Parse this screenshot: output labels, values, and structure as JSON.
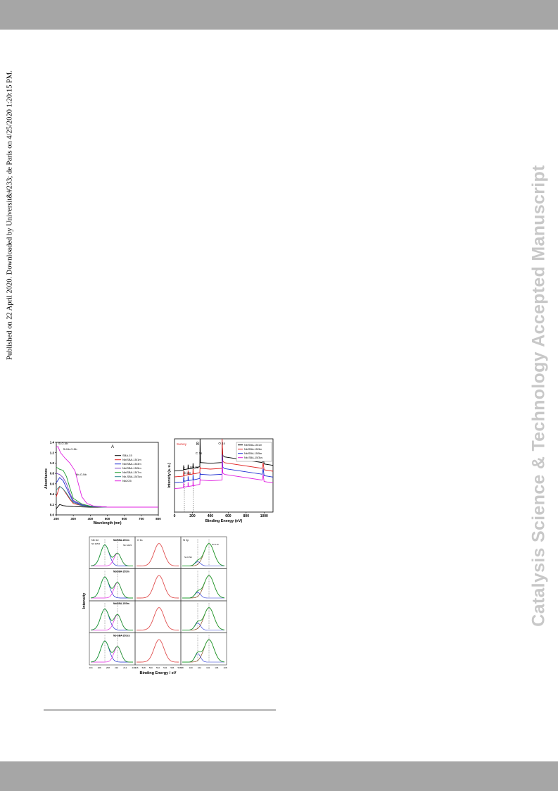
{
  "header": {
    "band_color": "#a6a6a6"
  },
  "side_note": "Published on 22 April 2020. Downloaded by Universit&#233; de Paris on 4/25/2020 1:20:15 PM.",
  "watermark": "Catalysis Science & Technology Accepted Manuscript",
  "figure_a": {
    "panel_label": "A",
    "xlabel": "Wavelength (nm)",
    "ylabel": "Absorbance",
    "x_ticks": [
      "200",
      "300",
      "400",
      "500",
      "600",
      "700",
      "800"
    ],
    "y_ticks": [
      "0.0",
      "0.2",
      "0.4",
      "0.6",
      "0.8",
      "1.0",
      "1.2",
      "1.4"
    ],
    "annotations": [
      "Si-O-Nb",
      "Si-Nb-O-Nb",
      "Nb-O-Nb"
    ],
    "legend": [
      "SBA-15",
      "Nb/SBA-15/1m",
      "Nb/SBA-15/3m",
      "Nb/SBA-15/5m",
      "Nb/SBA-15/7m",
      "Nb-SBA-15/3cs",
      "Nb2O5"
    ]
  },
  "chart_data": [
    {
      "type": "line",
      "panel": "A",
      "xlabel": "Wavelength (nm)",
      "ylabel": "Absorbance",
      "xlim": [
        200,
        800
      ],
      "ylim": [
        0.0,
        1.4
      ],
      "series": [
        {
          "name": "SBA-15",
          "color": "#000000",
          "x": [
            200,
            220,
            240,
            260,
            300,
            400,
            500,
            800
          ],
          "y": [
            0.12,
            0.2,
            0.18,
            0.17,
            0.16,
            0.15,
            0.15,
            0.15
          ]
        },
        {
          "name": "Nb/SBA-15/1m",
          "color": "#e02020",
          "x": [
            200,
            220,
            240,
            260,
            280,
            300,
            350,
            400,
            500,
            800
          ],
          "y": [
            0.35,
            0.55,
            0.5,
            0.4,
            0.3,
            0.22,
            0.18,
            0.16,
            0.15,
            0.15
          ]
        },
        {
          "name": "Nb/SBA-15/3m",
          "color": "#1a2ad0",
          "x": [
            200,
            220,
            240,
            260,
            280,
            300,
            350,
            400,
            500,
            800
          ],
          "y": [
            0.62,
            0.72,
            0.66,
            0.52,
            0.38,
            0.26,
            0.19,
            0.16,
            0.15,
            0.15
          ]
        },
        {
          "name": "Nb/SBA-15/5m",
          "color": "#7a3fc0",
          "x": [
            200,
            220,
            240,
            260,
            280,
            300,
            350,
            400,
            500,
            800
          ],
          "y": [
            0.8,
            0.78,
            0.72,
            0.6,
            0.42,
            0.28,
            0.2,
            0.17,
            0.15,
            0.15
          ]
        },
        {
          "name": "Nb/SBA-15/7m",
          "color": "#1e9e2e",
          "x": [
            200,
            220,
            240,
            260,
            280,
            300,
            350,
            400,
            500,
            800
          ],
          "y": [
            0.92,
            0.88,
            0.86,
            0.74,
            0.52,
            0.32,
            0.21,
            0.17,
            0.15,
            0.15
          ]
        },
        {
          "name": "Nb-SBA-15/3cs",
          "color": "#2a8a8a",
          "x": [
            200,
            220,
            240,
            260,
            280,
            300,
            350,
            400,
            500,
            800
          ],
          "y": [
            0.48,
            0.55,
            0.5,
            0.42,
            0.32,
            0.24,
            0.18,
            0.16,
            0.15,
            0.15
          ]
        },
        {
          "name": "Nb2O5",
          "color": "#e020e0",
          "x": [
            200,
            210,
            225,
            250,
            280,
            310,
            330,
            350,
            380,
            420,
            500,
            800
          ],
          "y": [
            1.3,
            1.32,
            1.2,
            1.1,
            1.0,
            0.85,
            0.6,
            0.35,
            0.22,
            0.17,
            0.15,
            0.15
          ]
        }
      ]
    },
    {
      "type": "line",
      "panel": "B",
      "title": "Survey",
      "xlabel": "Binding Energy (eV)",
      "ylabel": "Intensity (a. u.)",
      "xlim": [
        0,
        1100
      ],
      "x_ticks": [
        0,
        200,
        400,
        600,
        800,
        1000
      ],
      "annotations": [
        "Si 2p",
        "Nb 3d",
        "C 1s",
        "O 1s"
      ],
      "series": [
        {
          "name": "Nb/SBA-15/1m",
          "color": "#000000",
          "baseline": 0.58
        },
        {
          "name": "Nb/SBA-15/3m",
          "color": "#e02020",
          "baseline": 0.5
        },
        {
          "name": "Nb/SBA-15/5m",
          "color": "#1a2ad0",
          "baseline": 0.42
        },
        {
          "name": "Nb-SBA-15/3cs",
          "color": "#e020e0",
          "baseline": 0.34
        }
      ]
    },
    {
      "type": "line",
      "panel": "C",
      "xlabel": "Binding Energy / eV",
      "ylabel": "Intensity",
      "column_labels": [
        "Nb 3d",
        "O 1s",
        "Si 2p"
      ],
      "row_labels": [
        "Nb/SBA-15/1m",
        "Nb/SBA-15/3m",
        "Nb/SBA-15/5m",
        "Nb-SBA-15/3cs"
      ],
      "annotations": [
        "Nb 3d5/2",
        "Nb 3d3/2",
        "Si-O-Nb",
        "Si-O-Si"
      ],
      "x_ticks": [
        "204",
        "206",
        "208",
        "210",
        "212",
        "214",
        "526",
        "528",
        "530",
        "532",
        "534",
        "536",
        "538",
        "98",
        "100",
        "102",
        "104",
        "106",
        "108"
      ]
    }
  ]
}
